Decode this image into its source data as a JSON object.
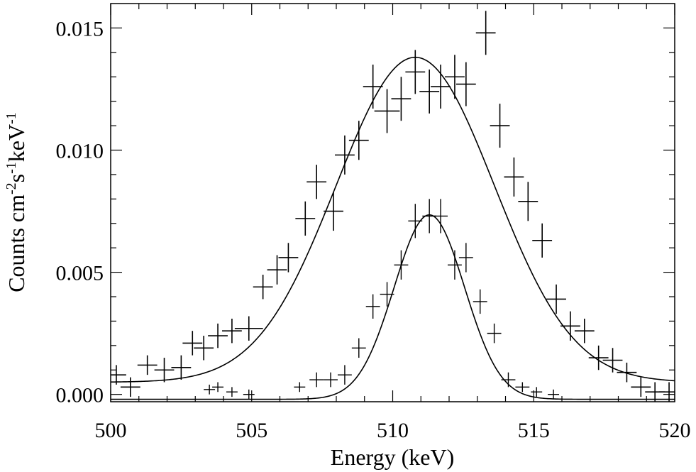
{
  "chart_data": {
    "type": "scatter",
    "xlabel": "Energy (keV)",
    "ylabel_parts": [
      "Counts cm",
      "-2",
      "s",
      "-1",
      "keV",
      "-1"
    ],
    "xlim": [
      500,
      520
    ],
    "ylim": [
      -0.0003,
      0.016
    ],
    "xticks": [
      500,
      505,
      510,
      515,
      520
    ],
    "xtick_labels": [
      "500",
      "505",
      "510",
      "515",
      "520"
    ],
    "yticks": [
      0.0,
      0.005,
      0.01,
      0.015
    ],
    "ytick_labels": [
      "0.000",
      "0.005",
      "0.010",
      "0.015"
    ],
    "grid": false,
    "series": [
      {
        "points": [
          {
            "x": 500.2,
            "y": 0.0008,
            "xerr": 0.35,
            "yerr": 0.0004
          },
          {
            "x": 500.7,
            "y": 0.0003,
            "xerr": 0.35,
            "yerr": 0.0004
          },
          {
            "x": 501.3,
            "y": 0.0012,
            "xerr": 0.35,
            "yerr": 0.0004
          },
          {
            "x": 501.9,
            "y": 0.001,
            "xerr": 0.35,
            "yerr": 0.0005
          },
          {
            "x": 502.5,
            "y": 0.0011,
            "xerr": 0.35,
            "yerr": 0.0005
          },
          {
            "x": 502.9,
            "y": 0.0021,
            "xerr": 0.35,
            "yerr": 0.0005
          },
          {
            "x": 503.3,
            "y": 0.0019,
            "xerr": 0.35,
            "yerr": 0.0005
          },
          {
            "x": 503.8,
            "y": 0.0024,
            "xerr": 0.35,
            "yerr": 0.0005
          },
          {
            "x": 504.3,
            "y": 0.0026,
            "xerr": 0.35,
            "yerr": 0.0005
          },
          {
            "x": 504.9,
            "y": 0.0027,
            "xerr": 0.5,
            "yerr": 0.0005
          },
          {
            "x": 505.4,
            "y": 0.0044,
            "xerr": 0.35,
            "yerr": 0.0005
          },
          {
            "x": 505.9,
            "y": 0.0051,
            "xerr": 0.35,
            "yerr": 0.0006
          },
          {
            "x": 506.3,
            "y": 0.0056,
            "xerr": 0.35,
            "yerr": 0.0006
          },
          {
            "x": 506.9,
            "y": 0.0072,
            "xerr": 0.35,
            "yerr": 0.0007
          },
          {
            "x": 507.3,
            "y": 0.0087,
            "xerr": 0.35,
            "yerr": 0.0007
          },
          {
            "x": 507.9,
            "y": 0.0075,
            "xerr": 0.35,
            "yerr": 0.0008
          },
          {
            "x": 508.3,
            "y": 0.0098,
            "xerr": 0.35,
            "yerr": 0.0008
          },
          {
            "x": 508.8,
            "y": 0.0104,
            "xerr": 0.35,
            "yerr": 0.0008
          },
          {
            "x": 509.3,
            "y": 0.0126,
            "xerr": 0.35,
            "yerr": 0.0009
          },
          {
            "x": 509.8,
            "y": 0.0116,
            "xerr": 0.45,
            "yerr": 0.0009
          },
          {
            "x": 510.3,
            "y": 0.0121,
            "xerr": 0.35,
            "yerr": 0.0009
          },
          {
            "x": 510.8,
            "y": 0.0132,
            "xerr": 0.35,
            "yerr": 0.0009
          },
          {
            "x": 511.3,
            "y": 0.0124,
            "xerr": 0.35,
            "yerr": 0.0009
          },
          {
            "x": 511.7,
            "y": 0.0126,
            "xerr": 0.35,
            "yerr": 0.0009
          },
          {
            "x": 512.2,
            "y": 0.013,
            "xerr": 0.35,
            "yerr": 0.0009
          },
          {
            "x": 512.6,
            "y": 0.0127,
            "xerr": 0.35,
            "yerr": 0.0009
          },
          {
            "x": 513.3,
            "y": 0.0148,
            "xerr": 0.35,
            "yerr": 0.0009
          },
          {
            "x": 513.8,
            "y": 0.011,
            "xerr": 0.35,
            "yerr": 0.0009
          },
          {
            "x": 514.3,
            "y": 0.0089,
            "xerr": 0.35,
            "yerr": 0.0008
          },
          {
            "x": 514.8,
            "y": 0.0079,
            "xerr": 0.35,
            "yerr": 0.0008
          },
          {
            "x": 515.3,
            "y": 0.0063,
            "xerr": 0.35,
            "yerr": 0.0007
          },
          {
            "x": 515.8,
            "y": 0.0039,
            "xerr": 0.35,
            "yerr": 0.0006
          },
          {
            "x": 516.3,
            "y": 0.0028,
            "xerr": 0.35,
            "yerr": 0.0006
          },
          {
            "x": 516.8,
            "y": 0.0026,
            "xerr": 0.35,
            "yerr": 0.0005
          },
          {
            "x": 517.3,
            "y": 0.0015,
            "xerr": 0.35,
            "yerr": 0.0005
          },
          {
            "x": 517.8,
            "y": 0.0014,
            "xerr": 0.35,
            "yerr": 0.0005
          },
          {
            "x": 518.3,
            "y": 0.0009,
            "xerr": 0.35,
            "yerr": 0.0004
          },
          {
            "x": 518.8,
            "y": 0.0003,
            "xerr": 0.35,
            "yerr": 0.0004
          },
          {
            "x": 519.3,
            "y": 0.0001,
            "xerr": 0.35,
            "yerr": 0.0004
          },
          {
            "x": 519.8,
            "y": 0.0001,
            "xerr": 0.35,
            "yerr": 0.0004
          }
        ]
      },
      {
        "points": [
          {
            "x": 503.5,
            "y": 0.0002,
            "xerr": 0.2,
            "yerr": 0.0002
          },
          {
            "x": 503.8,
            "y": 0.0003,
            "xerr": 0.2,
            "yerr": 0.0002
          },
          {
            "x": 504.3,
            "y": 0.0001,
            "xerr": 0.2,
            "yerr": 0.0002
          },
          {
            "x": 504.9,
            "y": 0.0,
            "xerr": 0.2,
            "yerr": 0.0002
          },
          {
            "x": 506.7,
            "y": 0.0003,
            "xerr": 0.2,
            "yerr": 0.0002
          },
          {
            "x": 507.3,
            "y": 0.0006,
            "xerr": 0.25,
            "yerr": 0.0003
          },
          {
            "x": 507.8,
            "y": 0.0006,
            "xerr": 0.25,
            "yerr": 0.0003
          },
          {
            "x": 508.3,
            "y": 0.0008,
            "xerr": 0.25,
            "yerr": 0.0004
          },
          {
            "x": 508.8,
            "y": 0.0019,
            "xerr": 0.25,
            "yerr": 0.0004
          },
          {
            "x": 509.3,
            "y": 0.0036,
            "xerr": 0.25,
            "yerr": 0.0005
          },
          {
            "x": 509.8,
            "y": 0.0041,
            "xerr": 0.25,
            "yerr": 0.0005
          },
          {
            "x": 510.3,
            "y": 0.0053,
            "xerr": 0.25,
            "yerr": 0.0006
          },
          {
            "x": 510.8,
            "y": 0.0071,
            "xerr": 0.25,
            "yerr": 0.0007
          },
          {
            "x": 511.3,
            "y": 0.0073,
            "xerr": 0.25,
            "yerr": 0.0007
          },
          {
            "x": 511.7,
            "y": 0.0073,
            "xerr": 0.25,
            "yerr": 0.0007
          },
          {
            "x": 512.2,
            "y": 0.0053,
            "xerr": 0.25,
            "yerr": 0.0006
          },
          {
            "x": 512.6,
            "y": 0.0056,
            "xerr": 0.25,
            "yerr": 0.0006
          },
          {
            "x": 513.1,
            "y": 0.0038,
            "xerr": 0.25,
            "yerr": 0.0005
          },
          {
            "x": 513.6,
            "y": 0.0025,
            "xerr": 0.25,
            "yerr": 0.0004
          },
          {
            "x": 514.1,
            "y": 0.0006,
            "xerr": 0.25,
            "yerr": 0.0003
          },
          {
            "x": 514.6,
            "y": 0.0003,
            "xerr": 0.25,
            "yerr": 0.0002
          },
          {
            "x": 515.1,
            "y": 0.0001,
            "xerr": 0.2,
            "yerr": 0.0002
          },
          {
            "x": 515.7,
            "y": 0.0,
            "xerr": 0.2,
            "yerr": 0.0002
          }
        ]
      }
    ],
    "fits": [
      {
        "shape": "gaussian",
        "amplitude": 0.0133,
        "center": 510.8,
        "sigma": 2.8,
        "offset": 0.0005
      },
      {
        "shape": "gaussian",
        "amplitude": 0.00755,
        "center": 511.3,
        "sigma": 1.25,
        "offset": -0.0002
      }
    ]
  }
}
